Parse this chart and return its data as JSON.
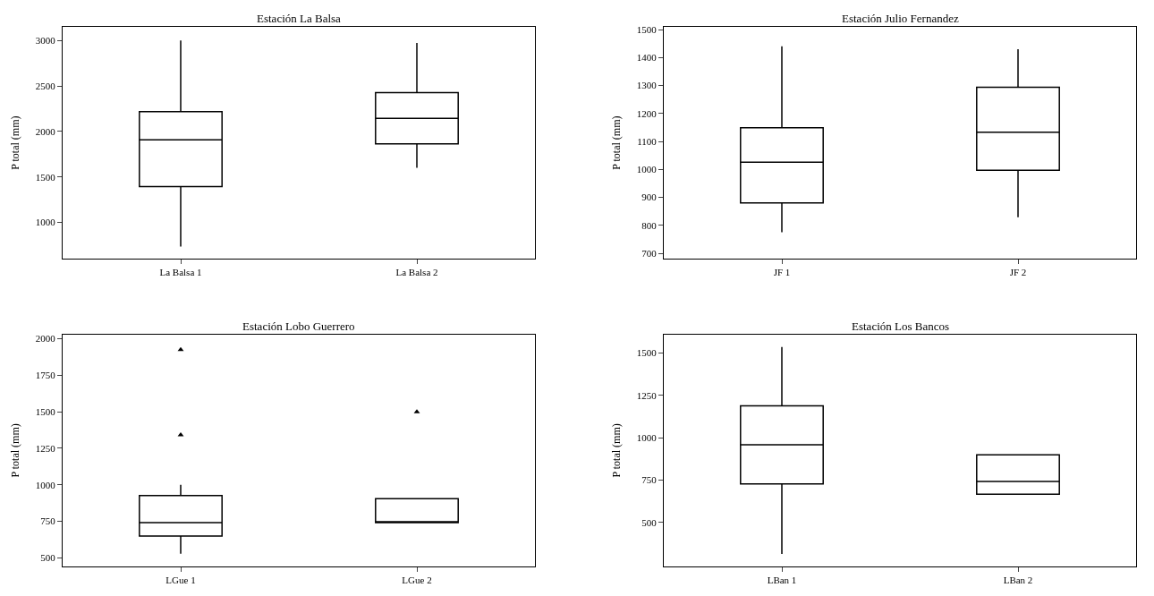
{
  "chart_data": [
    {
      "type": "box",
      "title": "Estación La Balsa",
      "ylabel": "P total (mm)",
      "categories": [
        "La Balsa 1",
        "La Balsa 2"
      ],
      "ylim": [
        600,
        3150
      ],
      "yticks": [
        1000,
        1500,
        2000,
        2500,
        3000
      ],
      "boxes": [
        {
          "low": 736,
          "q1": 1395,
          "median": 1909,
          "q3": 2218,
          "high": 3000
        },
        {
          "low": 1600,
          "q1": 1864,
          "median": 2145,
          "q3": 2427,
          "high": 2973
        }
      ]
    },
    {
      "type": "box",
      "title": "Estación Julio Fernandez",
      "ylabel": "P total (mm)",
      "categories": [
        "JF 1",
        "JF 2"
      ],
      "ylim": [
        680,
        1510
      ],
      "yticks": [
        700,
        800,
        900,
        1000,
        1100,
        1200,
        1300,
        1400,
        1500
      ],
      "boxes": [
        {
          "low": 775,
          "q1": 880,
          "median": 1026,
          "q3": 1149,
          "high": 1440
        },
        {
          "low": 829,
          "q1": 997,
          "median": 1133,
          "q3": 1294,
          "high": 1430
        }
      ]
    },
    {
      "type": "box",
      "title": "Estación Lobo Guerrero",
      "ylabel": "P total (mm)",
      "categories": [
        "LGue 1",
        "LGue 2"
      ],
      "ylim": [
        440,
        2030
      ],
      "yticks": [
        500,
        750,
        1000,
        1250,
        1500,
        1750,
        2000
      ],
      "boxes": [
        {
          "low": 528,
          "q1": 649,
          "median": 741,
          "q3": 926,
          "high": 1000,
          "outliers": [
            1342,
            1925
          ]
        },
        {
          "low": 741,
          "q1": 741,
          "median": 741,
          "q3": 904,
          "high": 904,
          "outliers": [
            1500
          ]
        }
      ]
    },
    {
      "type": "box",
      "title": "Estación Los Bancos",
      "ylabel": "P total (mm)",
      "categories": [
        "LBan 1",
        "LBan 2"
      ],
      "ylim": [
        240,
        1610
      ],
      "yticks": [
        500,
        750,
        1000,
        1250,
        1500
      ],
      "boxes": [
        {
          "low": 314,
          "q1": 728,
          "median": 958,
          "q3": 1189,
          "high": 1536
        },
        {
          "low": 666,
          "q1": 666,
          "median": 742,
          "q3": 899,
          "high": 899
        }
      ]
    }
  ]
}
